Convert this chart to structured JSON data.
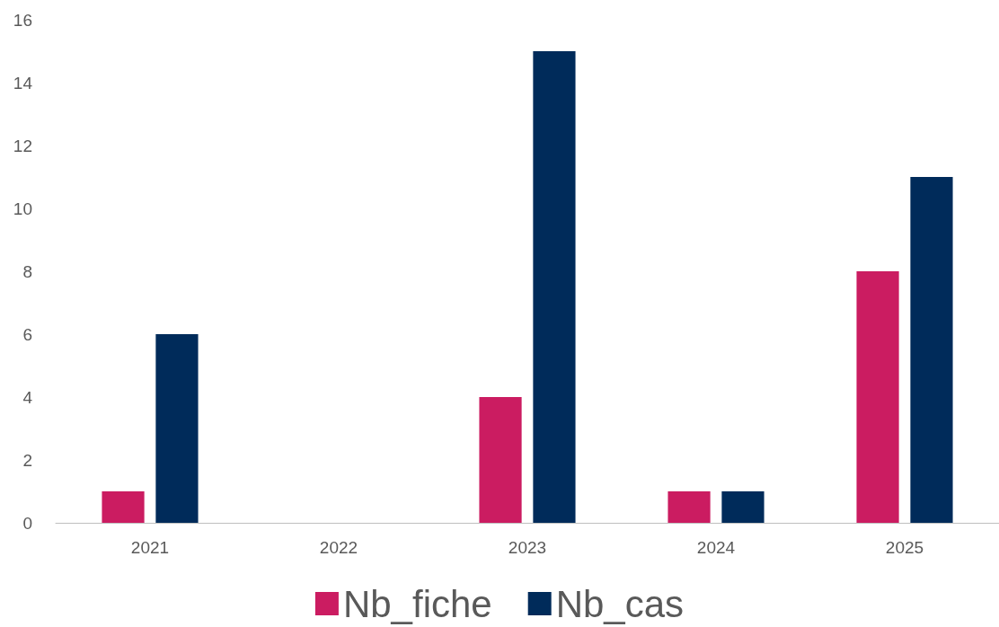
{
  "chart_data": {
    "type": "bar",
    "categories": [
      "2021",
      "2022",
      "2023",
      "2024",
      "2025"
    ],
    "series": [
      {
        "name": "Nb_fiche",
        "color": "#cb1c61",
        "values": [
          1,
          0,
          4,
          1,
          8
        ]
      },
      {
        "name": "Nb_cas",
        "color": "#002b5a",
        "values": [
          6,
          0,
          15,
          1,
          11
        ]
      }
    ],
    "ylim": [
      0,
      16
    ],
    "yticks": [
      0,
      2,
      4,
      6,
      8,
      10,
      12,
      14,
      16
    ],
    "grid": false,
    "legend": "bottom"
  }
}
